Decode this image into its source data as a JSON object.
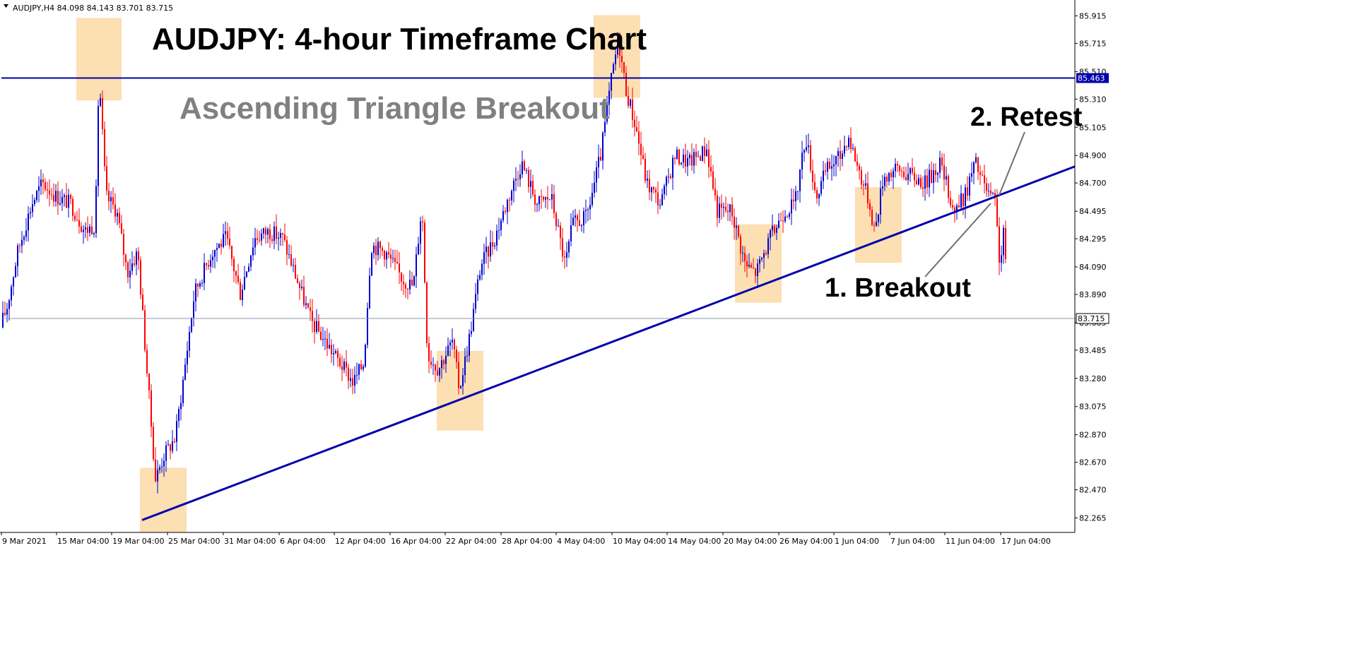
{
  "header": {
    "symbol_info": "AUDJPY,H4  84.098 84.143 83.701 83.715"
  },
  "chart_data": {
    "type": "candlestick",
    "title": "AUDJPY: 4-hour Timeframe Chart",
    "subtitle": "Ascending Triangle Breakout",
    "ylim": [
      82.16,
      86.02
    ],
    "y_ticks": [
      "85.915",
      "85.715",
      "85.510",
      "85.310",
      "85.105",
      "84.900",
      "84.700",
      "84.495",
      "84.295",
      "84.090",
      "83.890",
      "83.685",
      "83.485",
      "83.280",
      "83.075",
      "82.870",
      "82.670",
      "82.470",
      "82.265"
    ],
    "x_ticks": [
      "9 Mar 2021",
      "15 Mar 04:00",
      "19 Mar 04:00",
      "25 Mar 04:00",
      "31 Mar 04:00",
      "6 Apr 04:00",
      "12 Apr 04:00",
      "16 Apr 04:00",
      "22 Apr 04:00",
      "28 Apr 04:00",
      "4 May 04:00",
      "10 May 04:00",
      "14 May 04:00",
      "20 May 04:00",
      "26 May 04:00",
      "1 Jun 04:00",
      "7 Jun 04:00",
      "11 Jun 04:00",
      "17 Jun 04:00"
    ],
    "colors": {
      "bull": "#0000cc",
      "bear": "#ff0000",
      "line": "#0000aa",
      "box": "#fcd9a6",
      "price_line": "#8a9aa8"
    },
    "resistance": {
      "value": 85.463,
      "label": "85.463"
    },
    "current_price": {
      "value": 83.715,
      "label": "83.715"
    },
    "trendline": {
      "start": {
        "x": "23 Mar",
        "y": 82.25
      },
      "end": {
        "x": "18 Jun",
        "y": 84.82
      }
    },
    "annotations": [
      {
        "text": "1. Breakout"
      },
      {
        "text": "2. Retest"
      }
    ],
    "highlight_zones": [
      {
        "label": "mid-Mar high",
        "ylim": [
          85.3,
          85.9
        ]
      },
      {
        "label": "late-Mar low",
        "ylim": [
          82.16,
          82.63
        ]
      },
      {
        "label": "late-Apr low",
        "ylim": [
          82.9,
          83.48
        ]
      },
      {
        "label": "early-May high",
        "ylim": [
          85.32,
          85.92
        ]
      },
      {
        "label": "late-May low",
        "ylim": [
          83.83,
          84.4
        ]
      },
      {
        "label": "early-Jun low",
        "ylim": [
          84.12,
          84.67
        ]
      }
    ],
    "price_path": [
      [
        0,
        83.65
      ],
      [
        10,
        83.8
      ],
      [
        25,
        84.2
      ],
      [
        45,
        84.55
      ],
      [
        60,
        84.7
      ],
      [
        80,
        84.6
      ],
      [
        100,
        84.55
      ],
      [
        120,
        84.35
      ],
      [
        135,
        84.4
      ],
      [
        140,
        85.5
      ],
      [
        150,
        84.6
      ],
      [
        165,
        84.5
      ],
      [
        180,
        84.05
      ],
      [
        195,
        84.2
      ],
      [
        210,
        83.2
      ],
      [
        220,
        82.55
      ],
      [
        232,
        82.72
      ],
      [
        248,
        82.85
      ],
      [
        260,
        83.3
      ],
      [
        275,
        83.9
      ],
      [
        300,
        84.2
      ],
      [
        320,
        84.3
      ],
      [
        340,
        83.9
      ],
      [
        360,
        84.3
      ],
      [
        380,
        84.35
      ],
      [
        400,
        84.3
      ],
      [
        420,
        84.0
      ],
      [
        440,
        83.7
      ],
      [
        460,
        83.55
      ],
      [
        480,
        83.4
      ],
      [
        500,
        83.25
      ],
      [
        515,
        83.4
      ],
      [
        525,
        84.25
      ],
      [
        545,
        84.2
      ],
      [
        570,
        84.0
      ],
      [
        585,
        83.95
      ],
      [
        597,
        84.55
      ],
      [
        605,
        83.45
      ],
      [
        620,
        83.35
      ],
      [
        640,
        83.55
      ],
      [
        650,
        83.2
      ],
      [
        665,
        83.6
      ],
      [
        680,
        84.1
      ],
      [
        700,
        84.3
      ],
      [
        720,
        84.6
      ],
      [
        738,
        84.85
      ],
      [
        760,
        84.55
      ],
      [
        780,
        84.6
      ],
      [
        800,
        84.1
      ],
      [
        810,
        84.4
      ],
      [
        830,
        84.45
      ],
      [
        850,
        84.9
      ],
      [
        865,
        85.45
      ],
      [
        875,
        85.75
      ],
      [
        885,
        85.4
      ],
      [
        900,
        85.1
      ],
      [
        915,
        84.7
      ],
      [
        935,
        84.55
      ],
      [
        955,
        84.9
      ],
      [
        975,
        84.85
      ],
      [
        1000,
        84.95
      ],
      [
        1015,
        84.5
      ],
      [
        1035,
        84.5
      ],
      [
        1055,
        84.1
      ],
      [
        1070,
        84.05
      ],
      [
        1090,
        84.3
      ],
      [
        1110,
        84.5
      ],
      [
        1125,
        84.55
      ],
      [
        1140,
        85.05
      ],
      [
        1155,
        84.6
      ],
      [
        1170,
        84.8
      ],
      [
        1190,
        84.9
      ],
      [
        1200,
        85.05
      ],
      [
        1215,
        84.8
      ],
      [
        1228,
        84.6
      ],
      [
        1238,
        84.35
      ],
      [
        1250,
        84.75
      ],
      [
        1270,
        84.8
      ],
      [
        1290,
        84.75
      ],
      [
        1310,
        84.7
      ],
      [
        1330,
        84.85
      ],
      [
        1350,
        84.5
      ],
      [
        1365,
        84.6
      ],
      [
        1380,
        84.85
      ],
      [
        1395,
        84.65
      ],
      [
        1408,
        84.55
      ],
      [
        1415,
        84.1
      ],
      [
        1422,
        84.4
      ],
      [
        1425,
        83.72
      ]
    ]
  }
}
